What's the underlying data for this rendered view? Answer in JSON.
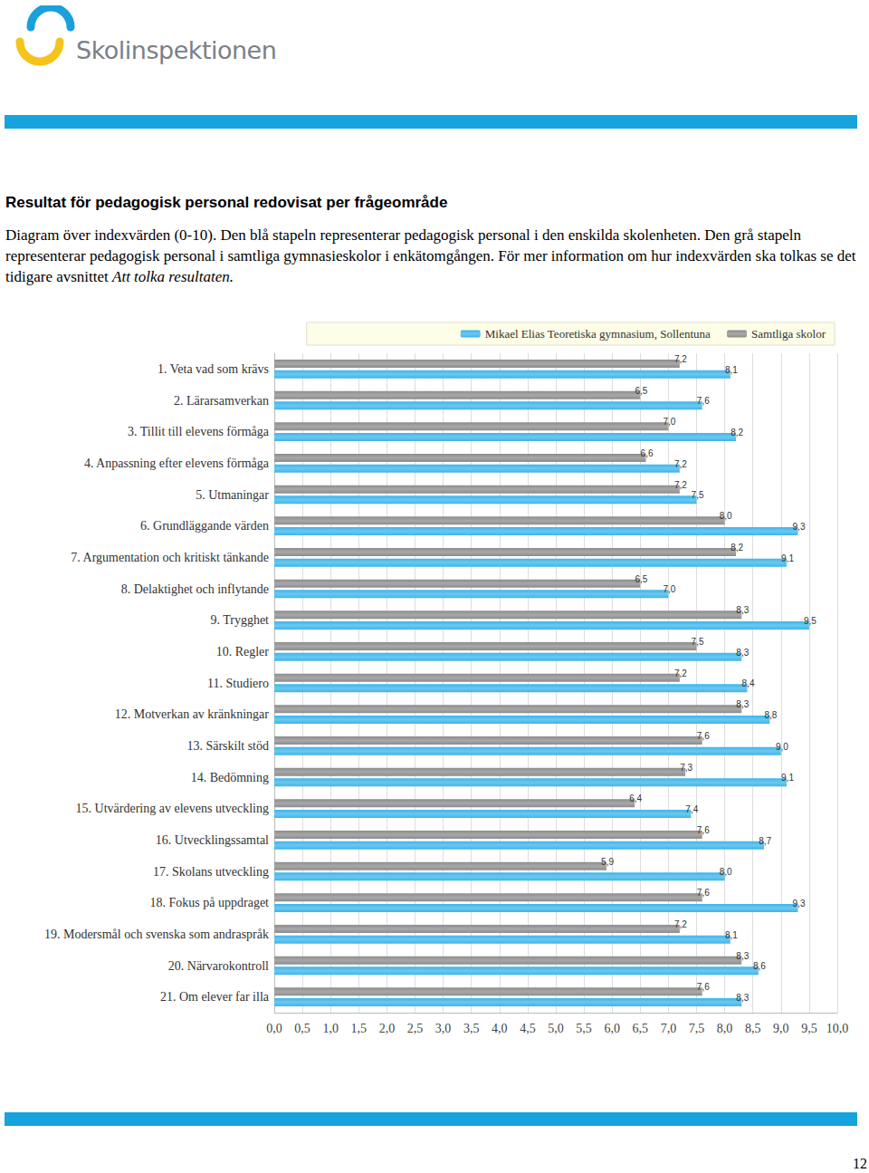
{
  "header": {
    "logo_text": "Skolinspektionen"
  },
  "heading": "Resultat för pedagogisk personal redovisat per frågeområde",
  "description": "Diagram över indexvärden (0-10). Den blå stapeln representerar pedagogisk personal i den enskilda skolenheten. Den grå stapeln representerar pedagogisk personal i samtliga gymnasieskolor i enkätomgången. För mer information om hur indexvärden ska tolkas se det tidigare avsnittet",
  "description_italic": "Att tolka resultaten.",
  "page_number": "12",
  "chart_data": {
    "type": "bar",
    "orientation": "horizontal",
    "categories": [
      "1. Veta vad som krävs",
      "2. Lärarsamverkan",
      "3. Tillit till elevens förmåga",
      "4. Anpassning efter elevens förmåga",
      "5. Utmaningar",
      "6. Grundläggande värden",
      "7. Argumentation och kritiskt tänkande",
      "8. Delaktighet och inflytande",
      "9. Trygghet",
      "10. Regler",
      "11. Studiero",
      "12. Motverkan av kränkningar",
      "13. Särskilt stöd",
      "14. Bedömning",
      "15. Utvärdering av elevens utveckling",
      "16. Utvecklingssamtal",
      "17. Skolans utveckling",
      "18. Fokus på uppdraget",
      "19. Modersmål och svenska som andraspråk",
      "20. Närvarokontroll",
      "21. Om elever far illa"
    ],
    "series": [
      {
        "name": "Mikael Elias Teoretiska gymnasium, Sollentuna",
        "color": "#3db5ea",
        "values": [
          8.1,
          7.6,
          8.2,
          7.2,
          7.5,
          9.3,
          9.1,
          7.0,
          9.5,
          8.3,
          8.4,
          8.8,
          9.0,
          9.1,
          7.4,
          8.7,
          8.0,
          9.3,
          8.1,
          8.6,
          8.3
        ],
        "value_labels": [
          "8,1",
          "7,6",
          "8,2",
          "7,2",
          "7,5",
          "9,3",
          "9,1",
          "7,0",
          "9,5",
          "8,3",
          "8,4",
          "8,8",
          "9,0",
          "9,1",
          "7,4",
          "8,7",
          "8,0",
          "9,3",
          "8,1",
          "8,6",
          "8,3"
        ]
      },
      {
        "name": "Samtliga skolor",
        "color": "#8c8c8c",
        "values": [
          7.2,
          6.5,
          7.0,
          6.6,
          7.2,
          8.0,
          8.2,
          6.5,
          8.3,
          7.5,
          7.2,
          8.3,
          7.6,
          7.3,
          6.4,
          7.6,
          5.9,
          7.6,
          7.2,
          8.3,
          7.6
        ],
        "value_labels": [
          "7,2",
          "6,5",
          "7,0",
          "6,6",
          "7,2",
          "8,0",
          "8,2",
          "6,5",
          "8,3",
          "7,5",
          "7,2",
          "8,3",
          "7,6",
          "7,3",
          "6,4",
          "7,6",
          "5,9",
          "7,6",
          "7,2",
          "8,3",
          "7,6"
        ]
      }
    ],
    "xlim": [
      0,
      10
    ],
    "xticks": [
      {
        "value": 0,
        "label": "0,0"
      },
      {
        "value": 0.5,
        "label": "0,5"
      },
      {
        "value": 1,
        "label": "1,0"
      },
      {
        "value": 1.5,
        "label": "1,5"
      },
      {
        "value": 2,
        "label": "2,0"
      },
      {
        "value": 2.5,
        "label": "2,5"
      },
      {
        "value": 3,
        "label": "3,0"
      },
      {
        "value": 3.5,
        "label": "3,5"
      },
      {
        "value": 4,
        "label": "4,0"
      },
      {
        "value": 4.5,
        "label": "4,5"
      },
      {
        "value": 5,
        "label": "5,0"
      },
      {
        "value": 5.5,
        "label": "5,5"
      },
      {
        "value": 6,
        "label": "6,0"
      },
      {
        "value": 6.5,
        "label": "6,5"
      },
      {
        "value": 7,
        "label": "7,0"
      },
      {
        "value": 7.5,
        "label": "7,5"
      },
      {
        "value": 8,
        "label": "8,0"
      },
      {
        "value": 8.5,
        "label": "8,5"
      },
      {
        "value": 9,
        "label": "9,0"
      },
      {
        "value": 9.5,
        "label": "9,5"
      },
      {
        "value": 10,
        "label": "10,0"
      }
    ],
    "grid": true,
    "legend": "top",
    "data_labels": true
  }
}
